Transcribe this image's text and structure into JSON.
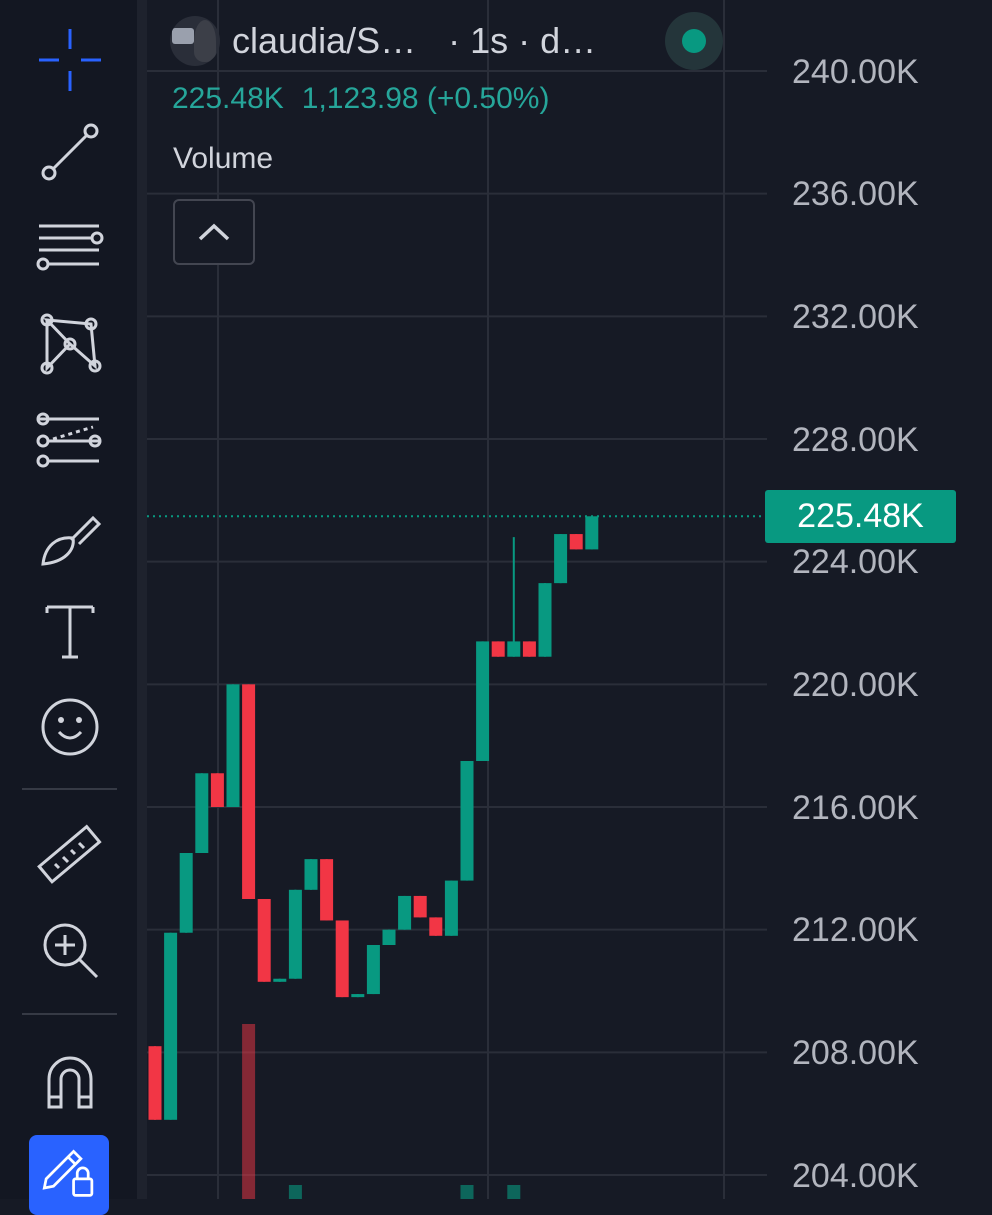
{
  "header": {
    "symbol": "claudia/S…",
    "interval": "· 1s · d…",
    "status_color": "#089981"
  },
  "ohlc": {
    "last": "225.48K",
    "change": "1,123.98 (+0.50%)"
  },
  "indicator": {
    "volume_label": "Volume"
  },
  "toolbar": {
    "tools": [
      "crosshair-icon",
      "trend-line-icon",
      "fib-retracement-icon",
      "xabcd-pattern-icon",
      "forecast-icon",
      "brush-icon",
      "text-icon",
      "emoji-icon",
      "ruler-icon",
      "zoom-in-icon",
      "magnet-icon",
      "lock-drawing-icon"
    ],
    "accent_color": "#2962ff"
  },
  "price_axis": {
    "labels": [
      "240.00K",
      "236.00K",
      "232.00K",
      "228.00K",
      "224.00K",
      "220.00K",
      "216.00K",
      "212.00K",
      "208.00K",
      "204.00K"
    ],
    "last_price_label": "225.48K"
  },
  "colors": {
    "up": "#089981",
    "down": "#f23645",
    "background": "#161a25"
  },
  "chart_data": {
    "type": "candlestick",
    "ylim": [
      204000,
      240000
    ],
    "last_price": 225480,
    "candles": [
      {
        "o": 208200,
        "h": 208200,
        "l": 205800,
        "c": 205800
      },
      {
        "o": 205800,
        "h": 211900,
        "l": 205800,
        "c": 211900
      },
      {
        "o": 211900,
        "h": 214500,
        "l": 211900,
        "c": 214500
      },
      {
        "o": 214500,
        "h": 217100,
        "l": 214500,
        "c": 217100
      },
      {
        "o": 217100,
        "h": 217100,
        "l": 216000,
        "c": 216000
      },
      {
        "o": 216000,
        "h": 220000,
        "l": 216000,
        "c": 220000
      },
      {
        "o": 220000,
        "h": 220000,
        "l": 213000,
        "c": 213000
      },
      {
        "o": 213000,
        "h": 213000,
        "l": 210300,
        "c": 210300
      },
      {
        "o": 210300,
        "h": 210400,
        "l": 210300,
        "c": 210400
      },
      {
        "o": 210400,
        "h": 213300,
        "l": 210400,
        "c": 213300
      },
      {
        "o": 213300,
        "h": 214300,
        "l": 213300,
        "c": 214300
      },
      {
        "o": 214300,
        "h": 214300,
        "l": 212300,
        "c": 212300
      },
      {
        "o": 212300,
        "h": 212300,
        "l": 209800,
        "c": 209800
      },
      {
        "o": 209800,
        "h": 209900,
        "l": 209800,
        "c": 209900
      },
      {
        "o": 209900,
        "h": 211500,
        "l": 209900,
        "c": 211500
      },
      {
        "o": 211500,
        "h": 212000,
        "l": 211500,
        "c": 212000
      },
      {
        "o": 212000,
        "h": 213100,
        "l": 212000,
        "c": 213100
      },
      {
        "o": 213100,
        "h": 213100,
        "l": 212400,
        "c": 212400
      },
      {
        "o": 212400,
        "h": 212400,
        "l": 211800,
        "c": 211800
      },
      {
        "o": 211800,
        "h": 213600,
        "l": 211800,
        "c": 213600
      },
      {
        "o": 213600,
        "h": 217500,
        "l": 213600,
        "c": 217500
      },
      {
        "o": 217500,
        "h": 221400,
        "l": 217500,
        "c": 221400
      },
      {
        "o": 221400,
        "h": 221400,
        "l": 220900,
        "c": 220900
      },
      {
        "o": 220900,
        "h": 224800,
        "l": 220900,
        "c": 221400
      },
      {
        "o": 221400,
        "h": 221400,
        "l": 220900,
        "c": 220900
      },
      {
        "o": 220900,
        "h": 223300,
        "l": 220900,
        "c": 223300
      },
      {
        "o": 223300,
        "h": 224900,
        "l": 223300,
        "c": 224900
      },
      {
        "o": 224900,
        "h": 224900,
        "l": 224400,
        "c": 224400
      },
      {
        "o": 224400,
        "h": 225480,
        "l": 224400,
        "c": 225480
      }
    ],
    "volume": [
      {
        "index": 6,
        "value": 1.0
      },
      {
        "index": 9,
        "value": 0.08
      },
      {
        "index": 20,
        "value": 0.08
      },
      {
        "index": 23,
        "value": 0.08
      }
    ]
  }
}
